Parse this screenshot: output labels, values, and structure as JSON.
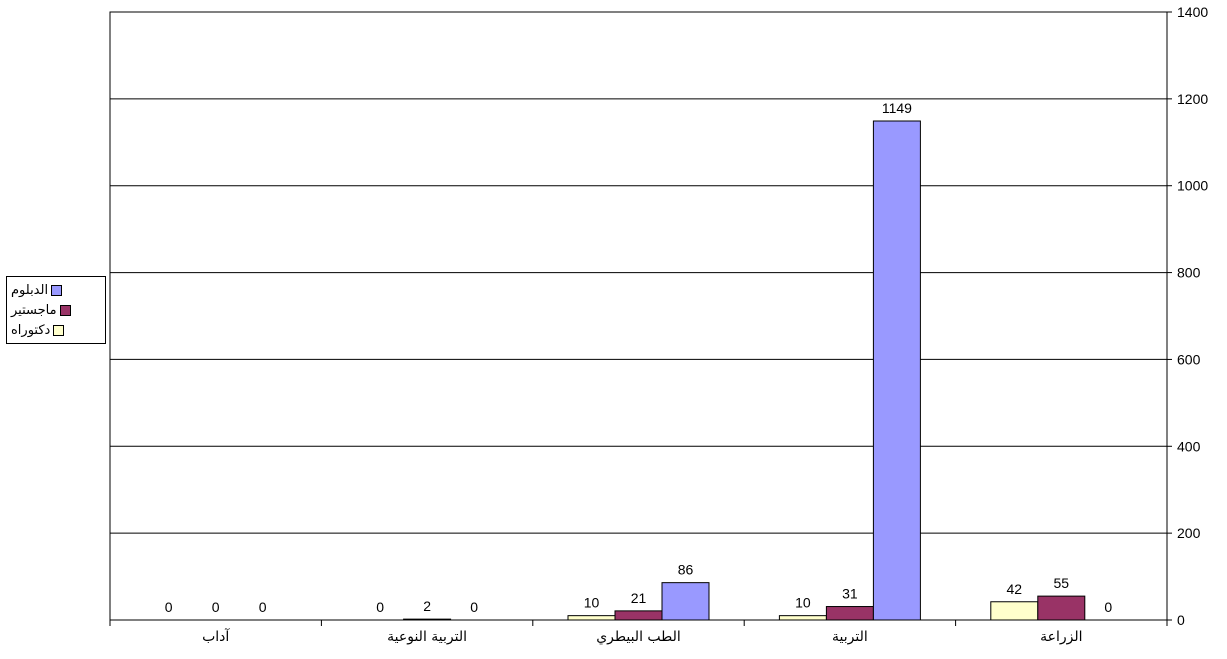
{
  "chart_data": {
    "type": "bar",
    "categories": [
      "آداب",
      "التربية النوعية",
      "الطب البيطري",
      "التربية",
      "الزراعة"
    ],
    "series": [
      {
        "name": "دكتوراه",
        "values": [
          0,
          0,
          10,
          10,
          42
        ],
        "color": "#ffffcc"
      },
      {
        "name": "ماجستير",
        "values": [
          0,
          2,
          21,
          31,
          55
        ],
        "color": "#993366"
      },
      {
        "name": "الدبلوم",
        "values": [
          0,
          0,
          86,
          1149,
          0
        ],
        "color": "#9999ff"
      }
    ],
    "ylim": [
      0,
      1400
    ],
    "yticks": [
      0,
      200,
      400,
      600,
      800,
      1000,
      1200,
      1400
    ],
    "y_axis_side": "right",
    "grid": true,
    "legend_position": "left"
  }
}
